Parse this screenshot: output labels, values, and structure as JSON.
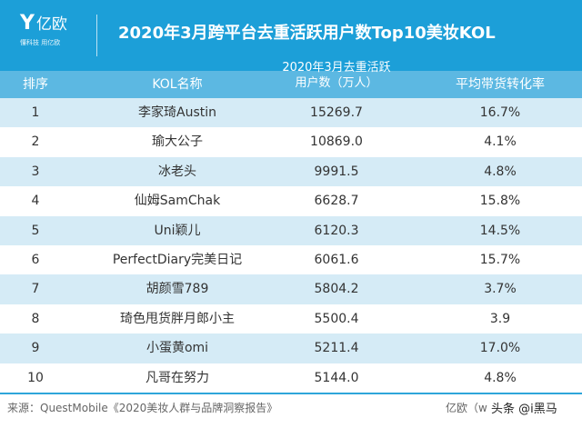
{
  "logo": {
    "mark": "Y",
    "name": "亿欧",
    "slogan": "懂科技 用亿欧"
  },
  "title": "2020年3月跨平台去重活跃用户数Top10美妆KOL",
  "headers": {
    "rank": "排序",
    "name": "KOL名称",
    "users_line1": "2020年3月去重活跃",
    "users_line2": "用户数（万人）",
    "rate": "平均带货转化率"
  },
  "rows": [
    {
      "rank": "1",
      "name": "李家琦Austin",
      "users": "15269.7",
      "rate": "16.7%"
    },
    {
      "rank": "2",
      "name": "瑜大公子",
      "users": "10869.0",
      "rate": "4.1%"
    },
    {
      "rank": "3",
      "name": "冰老头",
      "users": "9991.5",
      "rate": "4.8%"
    },
    {
      "rank": "4",
      "name": "仙姆SamChak",
      "users": "6628.7",
      "rate": "15.8%"
    },
    {
      "rank": "5",
      "name": "Uni颖儿",
      "users": "6120.3",
      "rate": "14.5%"
    },
    {
      "rank": "6",
      "name": "PerfectDiary完美日记",
      "users": "6061.6",
      "rate": "15.7%"
    },
    {
      "rank": "7",
      "name": "胡颜雪789",
      "users": "5804.2",
      "rate": "3.7%"
    },
    {
      "rank": "8",
      "name": "琦色甩货胖月郎小主",
      "users": "5500.4",
      "rate": "3.9"
    },
    {
      "rank": "9",
      "name": "小蛋黄omi",
      "users": "5211.4",
      "rate": "17.0%"
    },
    {
      "rank": "10",
      "name": "凡哥在努力",
      "users": "5144.0",
      "rate": "4.8%"
    }
  ],
  "footer": {
    "source": "来源：QuestMobile《2020美妆人群与品牌洞察报告》",
    "credit": "亿欧（w",
    "watermark": "头条 @i黑马"
  }
}
